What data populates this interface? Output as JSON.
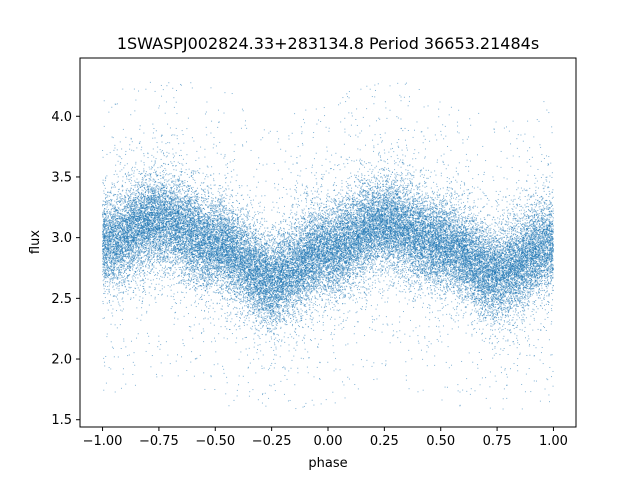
{
  "chart_data": {
    "type": "scatter",
    "title": "1SWASPJ002824.33+283134.8 Period 36653.21484s",
    "xlabel": "phase",
    "ylabel": "flux",
    "xlim": [
      -1.1,
      1.1
    ],
    "ylim": [
      1.44,
      4.48
    ],
    "xticks": [
      -1.0,
      -0.75,
      -0.5,
      -0.25,
      0.0,
      0.25,
      0.5,
      0.75,
      1.0
    ],
    "xtick_labels": [
      "−1.00",
      "−0.75",
      "−0.50",
      "−0.25",
      "0.00",
      "0.25",
      "0.50",
      "0.75",
      "1.00"
    ],
    "yticks": [
      1.5,
      2.0,
      2.5,
      3.0,
      3.5,
      4.0
    ],
    "ytick_labels": [
      "1.5",
      "2.0",
      "2.5",
      "3.0",
      "3.5",
      "4.0"
    ],
    "grid": false,
    "legend": "none",
    "point_color": "#1f77b4",
    "curve_model": {
      "description_of_trend": "double-humped light curve over phase -1 to 1",
      "x": [
        -1.0,
        -0.75,
        -0.5,
        -0.25,
        0.0,
        0.25,
        0.5,
        0.75,
        1.0
      ],
      "y_center": [
        2.95,
        3.15,
        2.95,
        2.65,
        2.9,
        3.12,
        2.95,
        2.7,
        2.95
      ]
    },
    "scatter_stats": {
      "n_points_approx": 40000,
      "core_spread": 0.18,
      "outlier_y_range": [
        1.58,
        4.28
      ]
    }
  }
}
